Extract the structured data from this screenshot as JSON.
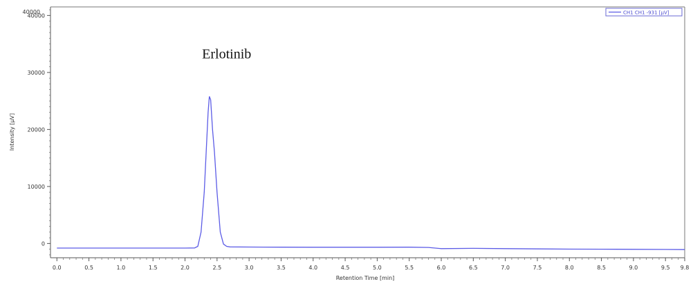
{
  "chart_data": {
    "type": "line",
    "xlabel": "Retention Time [min]",
    "ylabel": "Intensity [µV]",
    "xlim": [
      -0.1,
      9.8
    ],
    "ylim": [
      -2500,
      41500
    ],
    "x_ticks": [
      "0.0",
      "0.5",
      "1.0",
      "1.5",
      "2.0",
      "2.5",
      "3.0",
      "3.5",
      "4.0",
      "4.5",
      "5.0",
      "5.5",
      "6.0",
      "6.5",
      "7.0",
      "7.5",
      "8.0",
      "8.5",
      "9.0",
      "9.5",
      "9.8"
    ],
    "y_ticks": [
      "0",
      "10000",
      "20000",
      "30000",
      "40000"
    ],
    "y_top_label": "40000",
    "grid": false,
    "legend_position": "top-right",
    "colors": {
      "series": "#5b5be6",
      "axis": "#555555"
    },
    "annotations": [
      {
        "text": "Erlotinib",
        "x": 2.65,
        "y": 32500
      }
    ],
    "series": [
      {
        "name": "CH1 CH1 -931 [µV]",
        "x": [
          0.0,
          0.5,
          1.0,
          1.5,
          2.0,
          2.15,
          2.2,
          2.25,
          2.3,
          2.33,
          2.36,
          2.38,
          2.4,
          2.43,
          2.46,
          2.5,
          2.55,
          2.6,
          2.65,
          2.7,
          3.0,
          3.5,
          4.0,
          4.5,
          5.0,
          5.5,
          5.8,
          6.0,
          6.5,
          7.0,
          7.5,
          8.0,
          8.5,
          9.0,
          9.5,
          9.8
        ],
        "y": [
          -800,
          -800,
          -800,
          -800,
          -800,
          -780,
          -500,
          2000,
          9000,
          16000,
          23000,
          25800,
          25200,
          20000,
          16000,
          9000,
          2000,
          -100,
          -500,
          -600,
          -620,
          -650,
          -660,
          -660,
          -660,
          -650,
          -700,
          -900,
          -850,
          -900,
          -950,
          -980,
          -1000,
          -1020,
          -1050,
          -1070
        ]
      }
    ]
  }
}
